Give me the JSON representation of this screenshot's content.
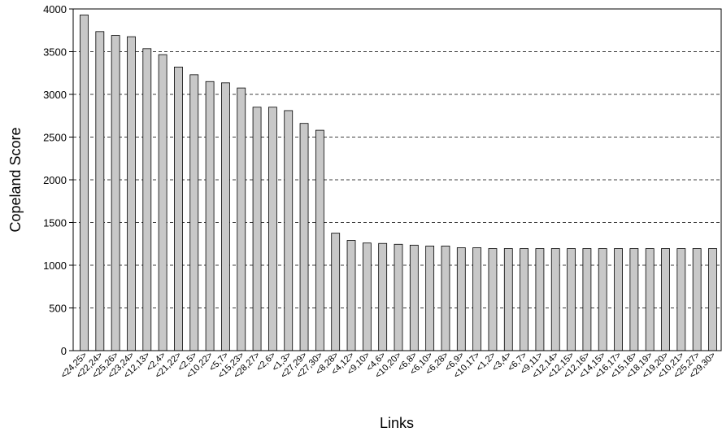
{
  "chart_data": {
    "type": "bar",
    "title": "",
    "xlabel": "Links",
    "ylabel": "Copeland Score",
    "ylim": [
      0,
      4000
    ],
    "yticks": [
      0,
      500,
      1000,
      1500,
      2000,
      2500,
      3000,
      3500,
      4000
    ],
    "grid": "horizontal dashed",
    "legend": "none",
    "bar_color": "#c8c8c8",
    "categories": [
      "<24,25>",
      "<22,24>",
      "<25,26>",
      "<23,24>",
      "<12,13>",
      "<2,4>",
      "<21,22>",
      "<2,5>",
      "<10,22>",
      "<5,7>",
      "<15,23>",
      "<28,27>",
      "<2,6>",
      "<1,3>",
      "<27,29>",
      "<27,30>",
      "<8,28>",
      "<4,12>",
      "<9,10>",
      "<4,6>",
      "<10,20>",
      "<6,8>",
      "<6,10>",
      "<6,28>",
      "<6,9>",
      "<10,17>",
      "<1,2>",
      "<3,4>",
      "<6,7>",
      "<9,11>",
      "<12,14>",
      "<12,15>",
      "<12,16>",
      "<14,15>",
      "<16,17>",
      "<15,18>",
      "<18,19>",
      "<19,20>",
      "<10,21>",
      "<25,27>",
      "<29,30>"
    ],
    "values": [
      3930,
      3735,
      3690,
      3675,
      3535,
      3465,
      3320,
      3230,
      3150,
      3135,
      3075,
      2850,
      2850,
      2810,
      2660,
      2580,
      1375,
      1290,
      1260,
      1255,
      1245,
      1235,
      1225,
      1225,
      1205,
      1205,
      1195,
      1195,
      1195,
      1195,
      1195,
      1195,
      1195,
      1195,
      1195,
      1195,
      1195,
      1195,
      1195,
      1195,
      1195
    ]
  }
}
